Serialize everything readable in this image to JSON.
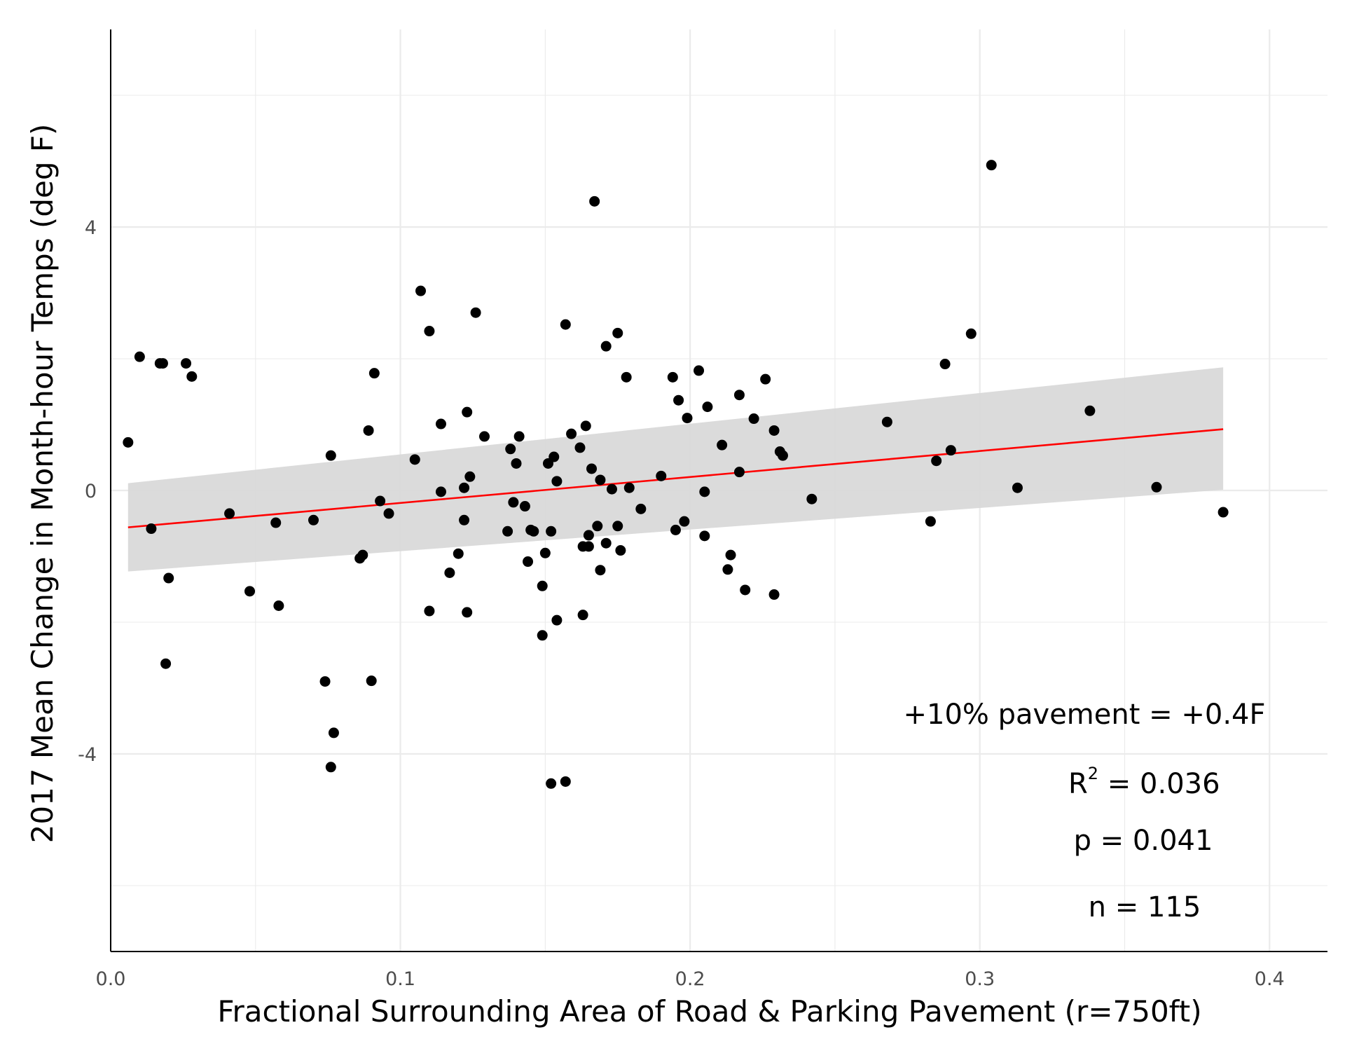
{
  "chart_data": {
    "type": "scatter",
    "title": "",
    "xlabel": "Fractional Surrounding Area of Road & Parking Pavement (r=750ft)",
    "ylabel": "2017 Mean Change in Month-hour Temps (deg F)",
    "xlim": [
      0.0,
      0.42
    ],
    "ylim": [
      -7.0,
      7.0
    ],
    "x_ticks": [
      0.0,
      0.1,
      0.2,
      0.3,
      0.4
    ],
    "x_tick_labels": [
      "0.0",
      "0.1",
      "0.2",
      "0.3",
      "0.4"
    ],
    "y_ticks": [
      -4,
      0,
      4
    ],
    "y_tick_labels": [
      "-4",
      "0",
      "4"
    ],
    "grid": true,
    "legend": "none",
    "colors": {
      "points": "#000000",
      "fit_line": "#ff0000",
      "ribbon": "#d9d9d9",
      "grid": "#ebebeb"
    },
    "points": [
      [
        0.006,
        0.73
      ],
      [
        0.01,
        2.03
      ],
      [
        0.014,
        -0.58
      ],
      [
        0.017,
        1.93
      ],
      [
        0.018,
        1.93
      ],
      [
        0.019,
        -2.63
      ],
      [
        0.02,
        -1.33
      ],
      [
        0.026,
        1.93
      ],
      [
        0.028,
        1.73
      ],
      [
        0.041,
        -0.35
      ],
      [
        0.048,
        -1.53
      ],
      [
        0.057,
        -0.49
      ],
      [
        0.058,
        -1.75
      ],
      [
        0.07,
        -0.45
      ],
      [
        0.074,
        -2.9
      ],
      [
        0.076,
        -4.2
      ],
      [
        0.076,
        0.53
      ],
      [
        0.077,
        -3.68
      ],
      [
        0.086,
        -1.03
      ],
      [
        0.087,
        -0.98
      ],
      [
        0.089,
        0.91
      ],
      [
        0.09,
        -2.89
      ],
      [
        0.091,
        1.78
      ],
      [
        0.093,
        -0.16
      ],
      [
        0.096,
        -0.35
      ],
      [
        0.105,
        0.47
      ],
      [
        0.107,
        3.03
      ],
      [
        0.11,
        2.42
      ],
      [
        0.11,
        -1.83
      ],
      [
        0.114,
        1.01
      ],
      [
        0.114,
        -0.02
      ],
      [
        0.117,
        -1.25
      ],
      [
        0.12,
        -0.96
      ],
      [
        0.122,
        -0.45
      ],
      [
        0.122,
        0.04
      ],
      [
        0.123,
        1.19
      ],
      [
        0.123,
        -1.85
      ],
      [
        0.124,
        0.21
      ],
      [
        0.126,
        2.7
      ],
      [
        0.129,
        0.82
      ],
      [
        0.137,
        -0.62
      ],
      [
        0.138,
        0.63
      ],
      [
        0.139,
        -0.18
      ],
      [
        0.14,
        0.41
      ],
      [
        0.141,
        0.82
      ],
      [
        0.143,
        -0.24
      ],
      [
        0.144,
        -1.08
      ],
      [
        0.145,
        -0.6
      ],
      [
        0.146,
        -0.62
      ],
      [
        0.149,
        -1.45
      ],
      [
        0.149,
        -2.2
      ],
      [
        0.15,
        -0.95
      ],
      [
        0.151,
        0.41
      ],
      [
        0.152,
        -4.45
      ],
      [
        0.152,
        -0.62
      ],
      [
        0.153,
        0.51
      ],
      [
        0.154,
        -1.97
      ],
      [
        0.154,
        0.14
      ],
      [
        0.157,
        2.52
      ],
      [
        0.157,
        -4.42
      ],
      [
        0.159,
        0.86
      ],
      [
        0.162,
        0.65
      ],
      [
        0.163,
        -1.89
      ],
      [
        0.163,
        -0.85
      ],
      [
        0.164,
        0.98
      ],
      [
        0.165,
        -0.85
      ],
      [
        0.165,
        -0.68
      ],
      [
        0.166,
        0.33
      ],
      [
        0.167,
        4.39
      ],
      [
        0.168,
        -0.54
      ],
      [
        0.169,
        0.16
      ],
      [
        0.169,
        -1.21
      ],
      [
        0.171,
        2.19
      ],
      [
        0.171,
        -0.8
      ],
      [
        0.173,
        0.02
      ],
      [
        0.175,
        -0.54
      ],
      [
        0.175,
        2.39
      ],
      [
        0.176,
        -0.91
      ],
      [
        0.178,
        1.72
      ],
      [
        0.179,
        0.04
      ],
      [
        0.183,
        -0.28
      ],
      [
        0.19,
        0.22
      ],
      [
        0.194,
        1.72
      ],
      [
        0.195,
        -0.6
      ],
      [
        0.196,
        1.37
      ],
      [
        0.198,
        -0.47
      ],
      [
        0.199,
        1.1
      ],
      [
        0.203,
        1.82
      ],
      [
        0.205,
        -0.02
      ],
      [
        0.205,
        -0.69
      ],
      [
        0.206,
        1.27
      ],
      [
        0.211,
        0.69
      ],
      [
        0.213,
        -1.2
      ],
      [
        0.214,
        -0.98
      ],
      [
        0.217,
        0.28
      ],
      [
        0.217,
        1.45
      ],
      [
        0.219,
        -1.51
      ],
      [
        0.222,
        1.09
      ],
      [
        0.226,
        1.69
      ],
      [
        0.229,
        0.91
      ],
      [
        0.229,
        -1.58
      ],
      [
        0.231,
        0.59
      ],
      [
        0.232,
        0.53
      ],
      [
        0.242,
        -0.13
      ],
      [
        0.268,
        1.04
      ],
      [
        0.283,
        -0.47
      ],
      [
        0.285,
        0.45
      ],
      [
        0.288,
        1.92
      ],
      [
        0.29,
        0.61
      ],
      [
        0.297,
        2.38
      ],
      [
        0.304,
        4.94
      ],
      [
        0.313,
        0.04
      ],
      [
        0.338,
        1.21
      ],
      [
        0.361,
        0.05
      ],
      [
        0.384,
        -0.33
      ]
    ],
    "fit": {
      "x": [
        0.006,
        0.384
      ],
      "y": [
        -0.56,
        0.93
      ],
      "ci_lower": [
        -1.23,
        0.01
      ],
      "ci_upper": [
        0.11,
        1.87
      ]
    },
    "annotations": {
      "effect": "+10% pavement = +0.4F",
      "r2_label": "R",
      "r2_sup": "2",
      "r2_value": " = 0.036",
      "p": "p = 0.041",
      "n": "n = 115"
    }
  }
}
